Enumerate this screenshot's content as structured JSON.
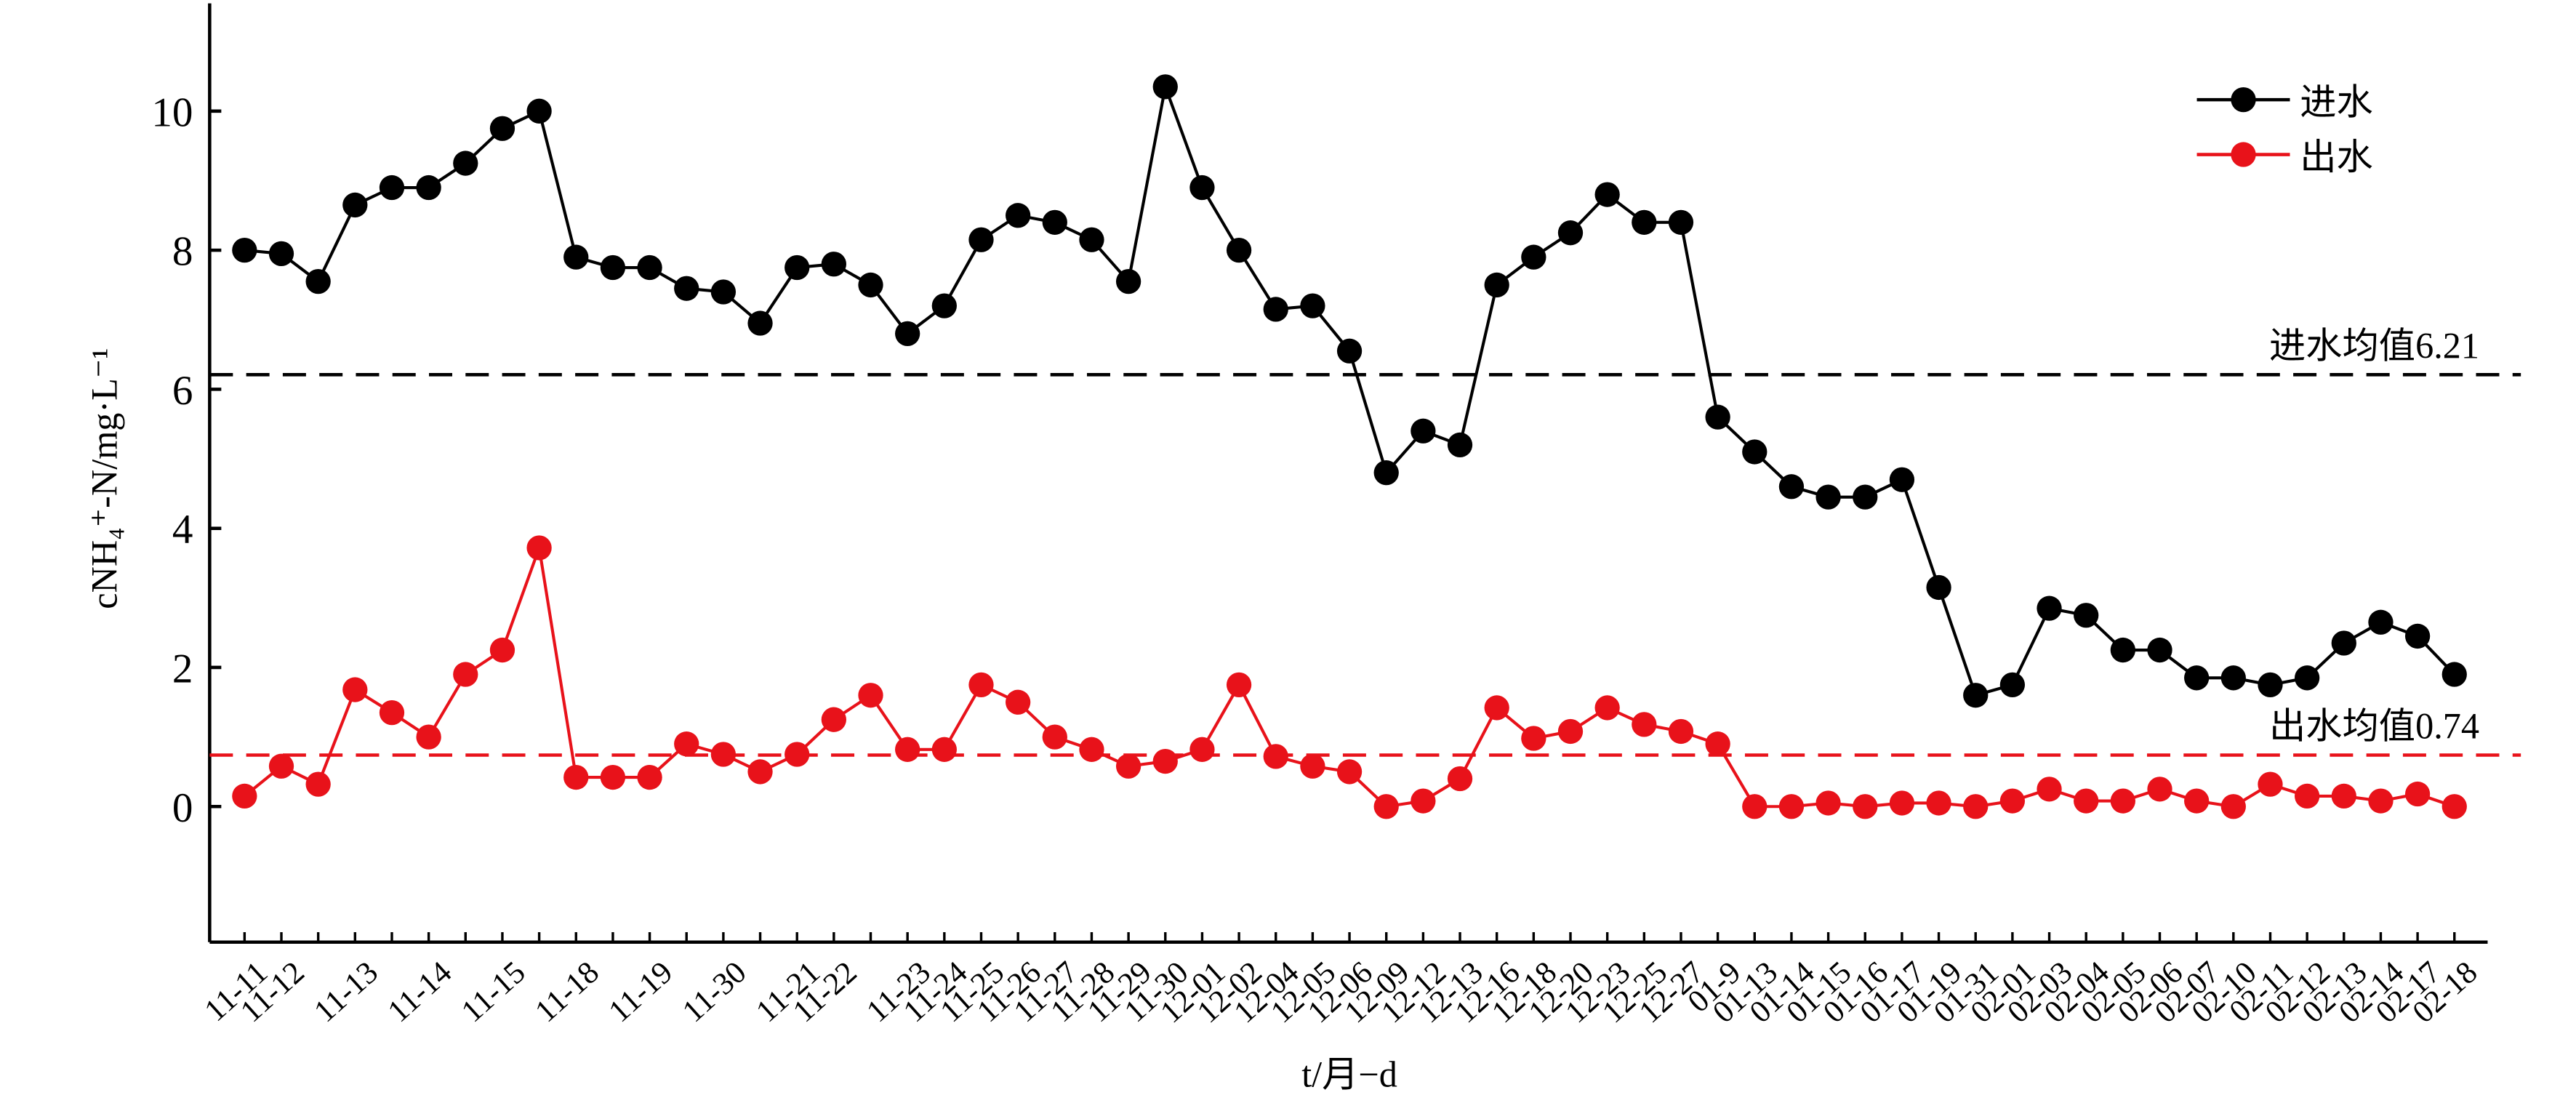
{
  "chart_data": {
    "type": "line",
    "y_label": "cNH₄⁺-N/mg·L⁻¹",
    "x_label": "t/月−d",
    "categories": [
      "11-11",
      "11-12",
      null,
      "11-13",
      null,
      "11-14",
      null,
      "11-15",
      null,
      "11-18",
      null,
      "11-19",
      null,
      "11-30",
      null,
      "11-21",
      "11-22",
      null,
      "11-23",
      "11-24",
      "11-25",
      "11-26",
      "11-27",
      "11-28",
      "11-29",
      "11-30",
      "12-01",
      "12-02",
      "12-04",
      "12-05",
      "12-06",
      "12-09",
      "12-12",
      "12-13",
      "12-16",
      "12-18",
      "12-20",
      "12-23",
      "12-25",
      "12-27",
      "01-9",
      "01-13",
      "01-14",
      "01-15",
      "01-16",
      "01-17",
      "01-19",
      "01-31",
      "02-01",
      "02-03",
      "02-04",
      "02-05",
      "02-06",
      "02-07",
      "02-10",
      "02-11",
      "02-12",
      "02-13",
      "02-14",
      "02-17",
      "02-18"
    ],
    "series": [
      {
        "name": "进水",
        "color": "#000000",
        "values": [
          8.0,
          7.95,
          7.55,
          8.65,
          8.9,
          8.9,
          9.25,
          9.75,
          10.0,
          7.9,
          7.75,
          7.75,
          7.45,
          7.4,
          6.95,
          7.75,
          7.8,
          7.5,
          6.8,
          7.2,
          8.15,
          8.5,
          8.4,
          8.15,
          7.55,
          10.35,
          8.9,
          8.0,
          7.15,
          7.2,
          6.55,
          4.8,
          5.4,
          5.2,
          7.5,
          7.9,
          8.25,
          8.8,
          8.4,
          8.4,
          5.6,
          5.1,
          4.6,
          4.45,
          4.45,
          4.7,
          3.15,
          1.6,
          1.75,
          2.85,
          2.75,
          2.25,
          2.25,
          1.85,
          1.85,
          1.75,
          1.85,
          2.35,
          2.65,
          2.45,
          1.9
        ]
      },
      {
        "name": "出水",
        "color": "#e8121a",
        "values": [
          0.15,
          0.58,
          0.32,
          1.68,
          1.35,
          1.0,
          1.9,
          2.25,
          3.72,
          0.42,
          0.42,
          0.42,
          0.9,
          0.75,
          0.5,
          0.75,
          1.25,
          1.6,
          0.82,
          0.82,
          1.75,
          1.5,
          1.0,
          0.82,
          0.58,
          0.65,
          0.82,
          1.75,
          0.72,
          0.58,
          0.5,
          0.0,
          0.08,
          0.4,
          1.42,
          0.98,
          1.08,
          1.42,
          1.18,
          1.08,
          0.9,
          0.0,
          0.0,
          0.05,
          0.0,
          0.05,
          0.05,
          0.0,
          0.08,
          0.25,
          0.08,
          0.08,
          0.25,
          0.08,
          0.0,
          0.32,
          0.15,
          0.15,
          0.08,
          0.18,
          0.0
        ]
      }
    ],
    "reference_lines": [
      {
        "value": 6.21,
        "label": "进水均值6.21",
        "color": "#000000"
      },
      {
        "value": 0.74,
        "label": "出水均值0.74",
        "color": "#e8121a"
      }
    ],
    "ylim": [
      -1.95,
      11.55
    ],
    "yticks": [
      0,
      2,
      4,
      6,
      8,
      10
    ],
    "legend": "upper right"
  }
}
